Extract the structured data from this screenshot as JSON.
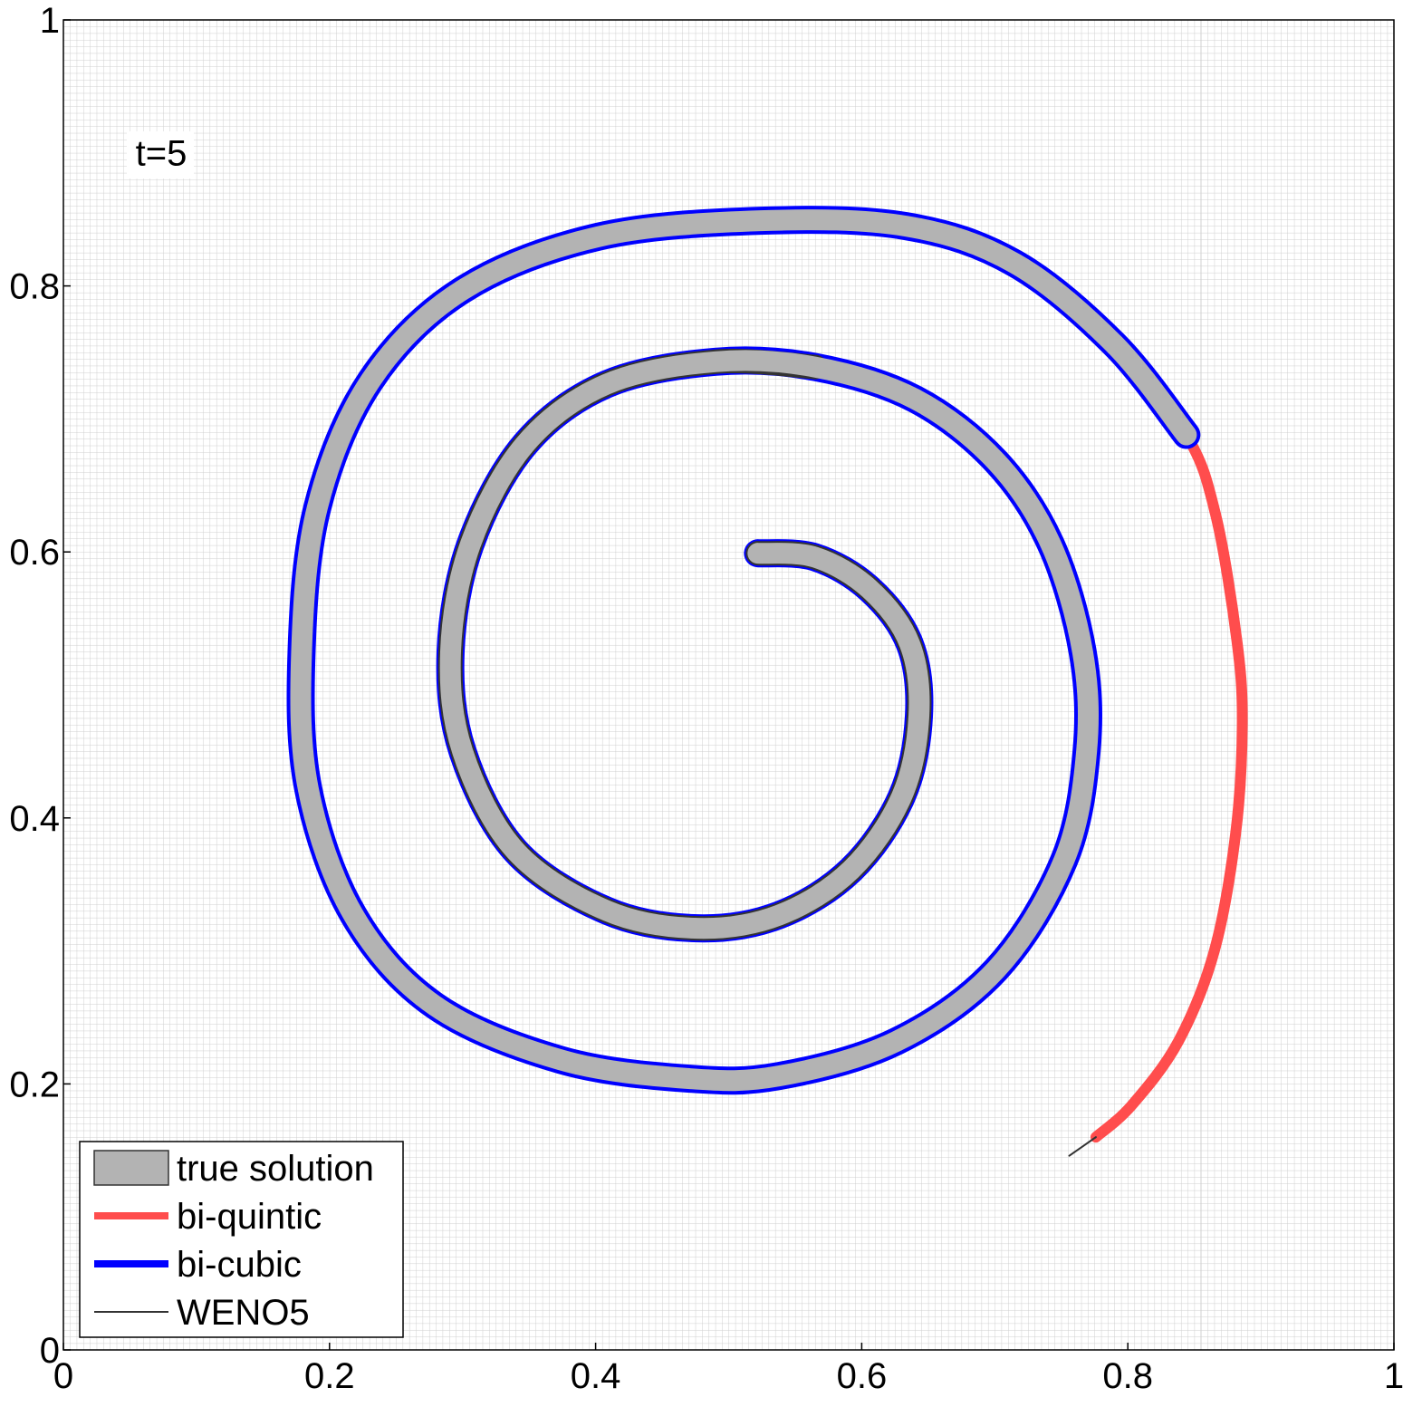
{
  "chart_data": {
    "type": "line",
    "annotation": "t=5",
    "xlim": [
      0,
      1
    ],
    "ylim": [
      0,
      1
    ],
    "xticks": [
      0,
      0.2,
      0.4,
      0.6,
      0.8,
      1
    ],
    "yticks": [
      0,
      0.2,
      0.4,
      0.6,
      0.8,
      1
    ],
    "legend": "lower left",
    "series": [
      {
        "name": "true solution",
        "color": "#b3b3b3",
        "x": [
          0.522,
          0.565,
          0.606,
          0.636,
          0.643,
          0.63,
          0.592,
          0.538,
          0.477,
          0.409,
          0.34,
          0.3,
          0.291,
          0.306,
          0.347,
          0.408,
          0.49,
          0.565,
          0.64,
          0.701,
          0.742,
          0.766,
          0.769,
          0.752,
          0.701,
          0.626,
          0.538,
          0.47,
          0.374,
          0.279,
          0.218,
          0.184,
          0.179,
          0.191,
          0.231,
          0.3,
          0.402,
          0.524,
          0.633,
          0.715,
          0.79,
          0.844
        ],
        "values": [
          0.599,
          0.596,
          0.572,
          0.531,
          0.477,
          0.416,
          0.361,
          0.327,
          0.317,
          0.33,
          0.375,
          0.45,
          0.525,
          0.606,
          0.681,
          0.726,
          0.743,
          0.739,
          0.715,
          0.668,
          0.606,
          0.525,
          0.45,
          0.368,
          0.286,
          0.232,
          0.206,
          0.204,
          0.218,
          0.259,
          0.327,
          0.422,
          0.525,
          0.634,
          0.729,
          0.797,
          0.837,
          0.849,
          0.845,
          0.817,
          0.756,
          0.688
        ]
      },
      {
        "name": "bi-quintic",
        "color": "#ff4d4d",
        "x": [
          0.522,
          0.565,
          0.606,
          0.636,
          0.643,
          0.63,
          0.592,
          0.538,
          0.477,
          0.409,
          0.34,
          0.3,
          0.291,
          0.306,
          0.347,
          0.408,
          0.49,
          0.565,
          0.64,
          0.701,
          0.742,
          0.766,
          0.769,
          0.752,
          0.701,
          0.626,
          0.538,
          0.47,
          0.374,
          0.279,
          0.218,
          0.184,
          0.179,
          0.191,
          0.231,
          0.3,
          0.402,
          0.524,
          0.633,
          0.715,
          0.79,
          0.844,
          0.866,
          0.882,
          0.886,
          0.881,
          0.865,
          0.838,
          0.803,
          0.776
        ],
        "values": [
          0.599,
          0.596,
          0.572,
          0.531,
          0.477,
          0.416,
          0.361,
          0.327,
          0.317,
          0.33,
          0.375,
          0.45,
          0.525,
          0.606,
          0.681,
          0.726,
          0.743,
          0.739,
          0.715,
          0.668,
          0.606,
          0.525,
          0.45,
          0.368,
          0.286,
          0.232,
          0.206,
          0.204,
          0.218,
          0.259,
          0.327,
          0.422,
          0.525,
          0.634,
          0.729,
          0.797,
          0.837,
          0.849,
          0.845,
          0.817,
          0.756,
          0.688,
          0.628,
          0.533,
          0.47,
          0.388,
          0.3,
          0.232,
          0.184,
          0.16
        ]
      },
      {
        "name": "bi-cubic",
        "color": "#0000ff",
        "x": [
          0.522,
          0.565,
          0.606,
          0.636,
          0.643,
          0.63,
          0.592,
          0.538,
          0.477,
          0.409,
          0.34,
          0.3,
          0.291,
          0.306,
          0.347,
          0.408,
          0.49,
          0.565,
          0.64,
          0.701,
          0.742,
          0.766,
          0.769,
          0.752,
          0.701,
          0.626,
          0.538,
          0.47,
          0.374,
          0.279,
          0.218,
          0.184,
          0.179,
          0.191,
          0.231,
          0.3,
          0.402,
          0.524,
          0.633,
          0.715,
          0.79,
          0.844
        ],
        "values": [
          0.599,
          0.596,
          0.572,
          0.531,
          0.477,
          0.416,
          0.361,
          0.327,
          0.317,
          0.33,
          0.375,
          0.45,
          0.525,
          0.606,
          0.681,
          0.726,
          0.743,
          0.739,
          0.715,
          0.668,
          0.606,
          0.525,
          0.45,
          0.368,
          0.286,
          0.232,
          0.206,
          0.204,
          0.218,
          0.259,
          0.327,
          0.422,
          0.525,
          0.634,
          0.729,
          0.797,
          0.837,
          0.849,
          0.845,
          0.817,
          0.756,
          0.688
        ]
      },
      {
        "name": "WENO5",
        "color": "#333333",
        "x": [
          0.522,
          0.565,
          0.606,
          0.636,
          0.643,
          0.63,
          0.592,
          0.538,
          0.477,
          0.409,
          0.34,
          0.3,
          0.291,
          0.306,
          0.347,
          0.408,
          0.49,
          0.565,
          null,
          0.776,
          0.756
        ],
        "values": [
          0.599,
          0.596,
          0.572,
          0.531,
          0.477,
          0.416,
          0.361,
          0.327,
          0.317,
          0.33,
          0.375,
          0.45,
          0.525,
          0.606,
          0.681,
          0.726,
          0.743,
          0.739,
          null,
          0.16,
          0.146
        ]
      }
    ]
  }
}
